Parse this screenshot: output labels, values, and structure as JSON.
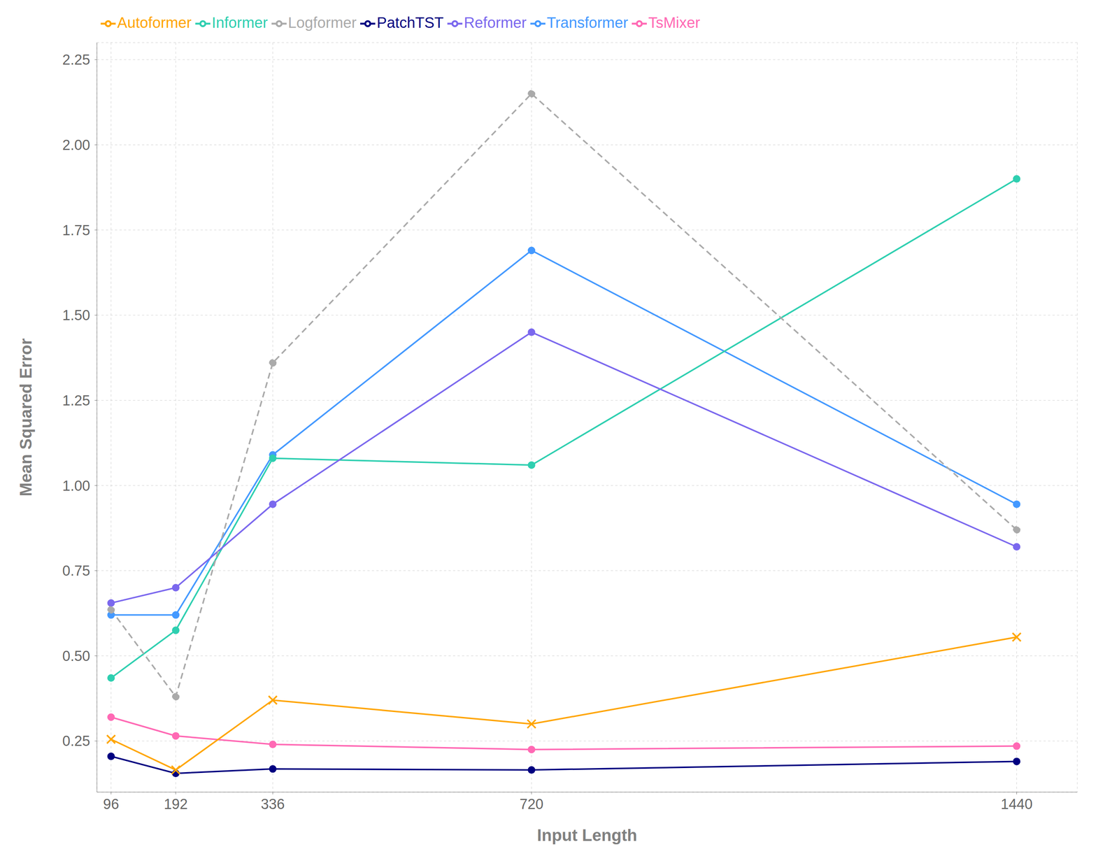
{
  "chart_data": {
    "type": "line",
    "xlabel": "Input Length",
    "ylabel": "Mean Squared Error",
    "x": [
      96,
      192,
      336,
      720,
      1440
    ],
    "series": [
      {
        "name": "TsMixer",
        "color": "#FF69B4",
        "marker": "circle",
        "line_style": "solid",
        "values": [
          0.32,
          0.265,
          0.24,
          0.225,
          0.235
        ]
      },
      {
        "name": "PatchTST",
        "color": "#000080",
        "marker": "circle",
        "line_style": "solid",
        "values": [
          0.205,
          0.155,
          0.168,
          0.165,
          0.19
        ]
      },
      {
        "name": "Transformer",
        "color": "#4499FF",
        "marker": "circle",
        "line_style": "solid",
        "values": [
          0.62,
          0.62,
          1.09,
          1.69,
          0.945
        ]
      },
      {
        "name": "Autoformer",
        "color": "#FFA500",
        "marker": "x",
        "line_style": "solid",
        "values": [
          0.255,
          0.165,
          0.37,
          0.3,
          0.555
        ]
      },
      {
        "name": "Informer",
        "color": "#2ECFB0",
        "marker": "circle",
        "line_style": "solid",
        "values": [
          0.435,
          0.575,
          1.08,
          1.06,
          1.9
        ]
      },
      {
        "name": "Reformer",
        "color": "#7B68EE",
        "marker": "circle",
        "line_style": "solid",
        "values": [
          0.655,
          0.7,
          0.945,
          1.45,
          0.82
        ]
      },
      {
        "name": "Logformer",
        "color": "#AAAAAA",
        "marker": "circle",
        "line_style": "dashed",
        "values": [
          0.635,
          0.38,
          1.36,
          2.15,
          0.87
        ]
      }
    ],
    "xlim": [
      75,
      1530
    ],
    "xticks": [
      96,
      192,
      336,
      720,
      1440
    ],
    "ylim": [
      0.1,
      2.3
    ],
    "yticks": [
      0.25,
      {
        "value": 0.5,
        "label": "0.50"
      },
      0.75,
      {
        "value": 1,
        "label": "1.00"
      },
      1.25,
      {
        "value": 1.5,
        "label": "1.50"
      },
      1.75,
      {
        "value": 2,
        "label": "2.00"
      },
      2.25
    ],
    "grid": true,
    "legend": "upper left"
  }
}
